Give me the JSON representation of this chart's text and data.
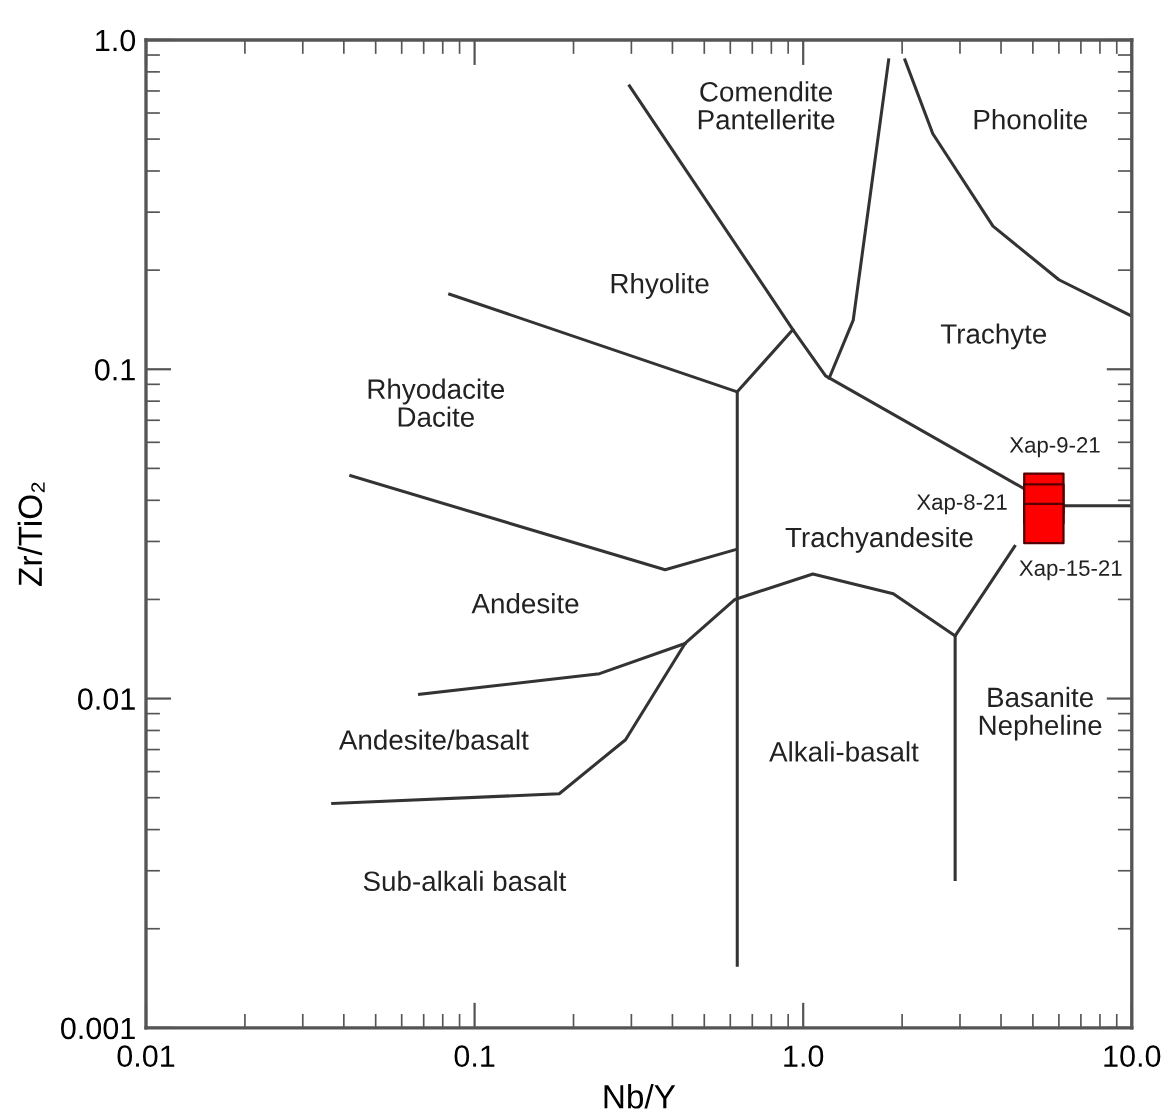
{
  "chart_data": {
    "type": "scatter",
    "xlabel": "Nb/Y",
    "ylabel": "Zr/TiO₂",
    "log": "xy",
    "xlim": [
      0.01,
      10
    ],
    "ylim": [
      0.001,
      1
    ],
    "xticks": [
      0.01,
      0.1,
      {
        "value": 1,
        "label": "1.0"
      },
      {
        "value": 10,
        "label": "10.0"
      }
    ],
    "yticks": [
      0.001,
      0.01,
      0.1,
      {
        "value": 1,
        "label": "1.0"
      }
    ],
    "series": [
      {
        "type": "line",
        "color": "#333333",
        "x": [
          0.296,
          0.93,
          1.17,
          4.66
        ],
        "values": [
          0.725,
          0.132,
          0.0955,
          0.0436
        ]
      },
      {
        "type": "line",
        "color": "#333333",
        "x": [
          6.0,
          10
        ],
        "values": [
          0.0385,
          0.0385
        ]
      },
      {
        "type": "line",
        "color": "#333333",
        "x": [
          4.4,
          2.9,
          2.9
        ],
        "values": [
          0.029,
          0.0155,
          0.00282
        ]
      },
      {
        "type": "line",
        "color": "#333333",
        "x": [
          1.82,
          1.42,
          1.2
        ],
        "values": [
          0.87,
          0.141,
          0.094
        ]
      },
      {
        "type": "line",
        "color": "#333333",
        "x": [
          2.04,
          2.48,
          3.78,
          6.0,
          10
        ],
        "values": [
          0.87,
          0.519,
          0.272,
          0.187,
          0.145
        ]
      },
      {
        "type": "line",
        "color": "#333333",
        "x": [
          0.084,
          0.63,
          0.93
        ],
        "values": [
          0.169,
          0.0854,
          0.132
        ]
      },
      {
        "type": "line",
        "color": "#333333",
        "x": [
          0.63,
          0.63
        ],
        "values": [
          0.0854,
          0.00155
        ]
      },
      {
        "type": "line",
        "color": "#333333",
        "x": [
          0.042,
          0.38,
          0.62
        ],
        "values": [
          0.0475,
          0.0246,
          0.0283
        ]
      },
      {
        "type": "line",
        "color": "#333333",
        "x": [
          0.068,
          0.24,
          0.437
        ],
        "values": [
          0.0103,
          0.0119,
          0.0147
        ]
      },
      {
        "type": "line",
        "color": "#333333",
        "x": [
          0.037,
          0.181,
          0.288,
          0.437,
          0.62,
          1.07,
          1.88,
          2.9
        ],
        "values": [
          0.0048,
          0.00514,
          0.0075,
          0.0147,
          0.02,
          0.0239,
          0.0208,
          0.0155
        ]
      },
      {
        "color": "#ff0000",
        "marker": "square",
        "x": [
          5.4,
          5.4,
          5.4
        ],
        "values": [
          0.042,
          0.039,
          0.034
        ]
      }
    ],
    "annotations": [
      "Comendite\nPantellerite",
      "Phonolite",
      "Rhyolite",
      "Trachyte",
      "Rhyodacite\nDacite",
      "Trachyandesite",
      "Andesite",
      "Andesite/basalt",
      "Alkali-basalt",
      "Basanite\nNepheline",
      "Sub-alkali basalt",
      "Xap-9-21",
      "Xap-8-21",
      "Xap-15-21"
    ]
  }
}
